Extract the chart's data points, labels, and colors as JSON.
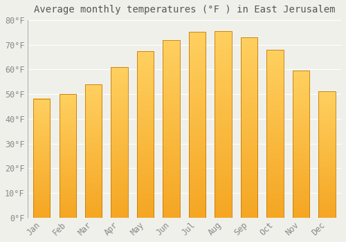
{
  "title": "Average monthly temperatures (°F ) in East Jerusalem",
  "months": [
    "Jan",
    "Feb",
    "Mar",
    "Apr",
    "May",
    "Jun",
    "Jul",
    "Aug",
    "Sep",
    "Oct",
    "Nov",
    "Dec"
  ],
  "values": [
    48.2,
    50.0,
    54.0,
    61.0,
    67.5,
    72.0,
    75.2,
    75.5,
    73.0,
    68.0,
    59.5,
    51.2
  ],
  "ylim": [
    0,
    80
  ],
  "yticks": [
    0,
    10,
    20,
    30,
    40,
    50,
    60,
    70,
    80
  ],
  "ytick_labels": [
    "0°F",
    "10°F",
    "20°F",
    "30°F",
    "40°F",
    "50°F",
    "60°F",
    "70°F",
    "80°F"
  ],
  "background_color": "#F0F0EB",
  "grid_color": "#FFFFFF",
  "bar_color_bottom": "#F5A623",
  "bar_color_top": "#FFD060",
  "bar_edge_color": "#C47A00",
  "title_fontsize": 10,
  "tick_fontsize": 8.5
}
